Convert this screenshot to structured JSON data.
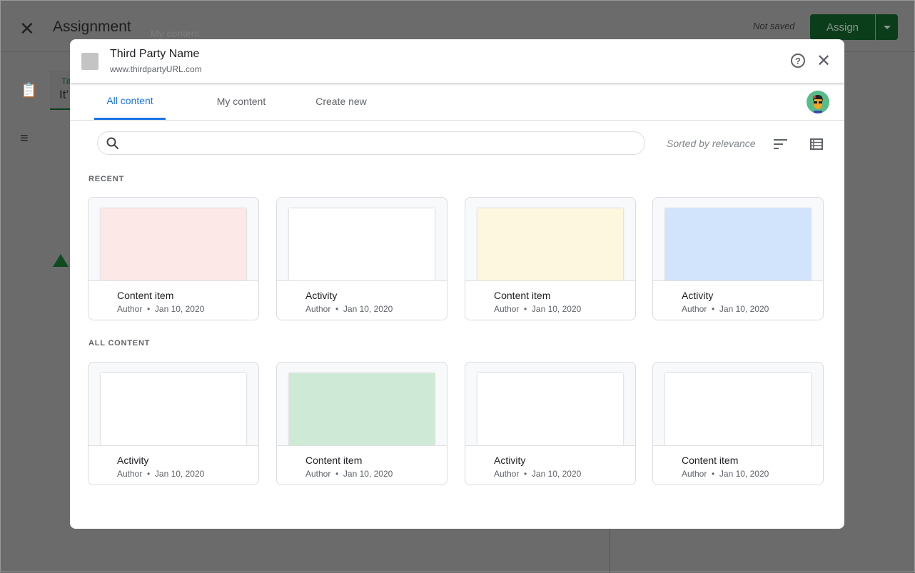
{
  "background": {
    "title": "Assignment",
    "ghost_text": "My content",
    "status": "Not saved",
    "assign_label": "Assign",
    "field_label": "Title",
    "field_value": "It’"
  },
  "modal": {
    "name": "Third Party Name",
    "url": "www.thirdpartyURL.com",
    "tabs": [
      {
        "label": "All content",
        "active": true
      },
      {
        "label": "My content"
      },
      {
        "label": "Create new"
      }
    ],
    "search": {
      "placeholder": "",
      "value": ""
    },
    "sort_label": "Sorted by relevance",
    "sections": [
      {
        "title": "RECENT",
        "items": [
          {
            "title": "Content item",
            "author": "Author",
            "date": "Jan 10, 2020",
            "color": "#fce8e6"
          },
          {
            "title": "Activity",
            "author": "Author",
            "date": "Jan 10, 2020",
            "color": "#ffffff"
          },
          {
            "title": "Content item",
            "author": "Author",
            "date": "Jan 10, 2020",
            "color": "#fef7e0"
          },
          {
            "title": "Activity",
            "author": "Author",
            "date": "Jan 10, 2020",
            "color": "#d2e3fc"
          }
        ]
      },
      {
        "title": "ALL CONTENT",
        "items": [
          {
            "title": "Activity",
            "author": "Author",
            "date": "Jan 10, 2020",
            "color": "#ffffff"
          },
          {
            "title": "Content item",
            "author": "Author",
            "date": "Jan 10, 2020",
            "color": "#ceead6"
          },
          {
            "title": "Activity",
            "author": "Author",
            "date": "Jan 10, 2020",
            "color": "#ffffff"
          },
          {
            "title": "Content item",
            "author": "Author",
            "date": "Jan 10, 2020",
            "color": "#ffffff"
          }
        ]
      }
    ]
  }
}
